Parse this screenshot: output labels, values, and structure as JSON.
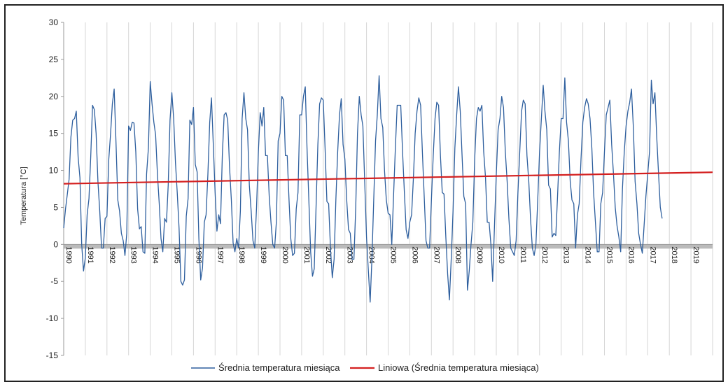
{
  "chart_data": {
    "type": "line",
    "ylabel": "Temperatura [°C]",
    "xlabel": "",
    "ylim": [
      -15,
      30
    ],
    "yticks": [
      30,
      25,
      20,
      15,
      10,
      5,
      0,
      -5,
      -10,
      -15
    ],
    "xticks": [
      "1990",
      "1991",
      "1992",
      "1993",
      "1994",
      "1995",
      "1996",
      "1997",
      "1998",
      "1999",
      "2000",
      "2001",
      "2002",
      "2003",
      "2004",
      "2005",
      "2006",
      "2007",
      "2008",
      "2009",
      "2010",
      "2011",
      "2012",
      "2013",
      "2014",
      "2015",
      "2016",
      "2017",
      "2018",
      "2019"
    ],
    "x_start": 1990,
    "x_end": 2020,
    "grid": "vertical",
    "legend_position": "bottom",
    "series": [
      {
        "name": "Średnia temperatura miesiąca",
        "color": "#2e5f9e",
        "values": [
          2.2,
          4.8,
          6.8,
          8.8,
          14.5,
          16.8,
          17.0,
          18.0,
          11.8,
          9.0,
          0.0,
          -3.6,
          -1.8,
          4.0,
          6.2,
          11.8,
          18.8,
          18.2,
          15.0,
          8.5,
          4.5,
          -0.5,
          -0.5,
          3.5,
          3.8,
          11.5,
          15.0,
          19.0,
          21.0,
          13.8,
          6.0,
          4.5,
          1.5,
          0.5,
          -1.5,
          1.5,
          16.0,
          15.4,
          16.5,
          16.4,
          12.5,
          4.8,
          2.1,
          2.4,
          -1.0,
          -1.2,
          9.5,
          13.0,
          22.0,
          19.0,
          16.5,
          14.8,
          9.5,
          5.5,
          0.8,
          -1.0,
          3.5,
          3.0,
          8.0,
          16.8,
          20.5,
          17.0,
          11.0,
          7.0,
          2.2,
          -5.0,
          -5.5,
          -4.8,
          3.8,
          6.2,
          16.8,
          16.2,
          18.5,
          10.8,
          9.8,
          0.8,
          -4.8,
          -3.2,
          3.0,
          4.0,
          9.5,
          16.5,
          19.8,
          13.5,
          7.0,
          1.8,
          4.0,
          2.8,
          12.0,
          17.5,
          17.8,
          16.8,
          10.5,
          6.0,
          0.2,
          -1.0,
          0.8,
          -0.5,
          4.5,
          17.0,
          20.5,
          17.0,
          15.5,
          8.0,
          4.5,
          0.5,
          -0.5,
          5.0,
          12.5,
          17.8,
          16.0,
          18.5,
          12.0,
          12.0,
          6.5,
          3.0,
          0.0,
          -0.5,
          3.0,
          14.0,
          15.0,
          20.0,
          19.5,
          12.0,
          12.0,
          6.0,
          0.8,
          -1.5,
          -1.2,
          4.8,
          7.0,
          17.5,
          17.5,
          20.0,
          21.3,
          13.0,
          6.0,
          -1.0,
          -4.3,
          -3.3,
          5.0,
          13.5,
          19.0,
          19.8,
          19.5,
          13.0,
          5.8,
          5.5,
          -0.5,
          -4.5,
          -2.0,
          6.0,
          12.5,
          17.5,
          19.7,
          13.5,
          11.5,
          6.0,
          2.0,
          1.5,
          -2.0,
          -2.0,
          5.0,
          15.0,
          20.0,
          17.5,
          16.0,
          8.5,
          1.0,
          -3.5,
          -7.8,
          -2.0,
          6.0,
          14.0,
          17.5,
          22.8,
          17.0,
          15.8,
          10.0,
          6.0,
          4.2,
          4.0,
          0.0,
          6.5,
          13.0,
          18.8,
          18.8,
          18.8,
          12.5,
          7.0,
          2.0,
          0.8,
          3.0,
          4.0,
          9.0,
          15.0,
          18.0,
          19.8,
          18.8,
          12.5,
          6.5,
          0.5,
          -0.5,
          -0.5,
          6.0,
          12.0,
          17.0,
          19.2,
          18.8,
          12.0,
          7.0,
          6.8,
          1.0,
          -4.0,
          -7.5,
          -2.0,
          4.5,
          13.0,
          17.5,
          21.3,
          18.0,
          12.0,
          6.5,
          5.5,
          -6.2,
          -3.5,
          0.0,
          3.0,
          11.5,
          17.0,
          18.5,
          18.0,
          18.8,
          12.5,
          9.0,
          3.0,
          3.0,
          0.0,
          -5.0,
          2.5,
          9.5,
          15.5,
          17.0,
          20.0,
          18.5,
          12.5,
          8.5,
          3.5,
          -0.5,
          -1.0,
          -1.5,
          0.5,
          7.0,
          12.5,
          18.0,
          19.5,
          19.0,
          12.0,
          8.5,
          3.5,
          -0.5,
          -1.5,
          0.0,
          6.0,
          12.5,
          17.0,
          21.5,
          18.0,
          15.5,
          8.0,
          7.5,
          1.0,
          1.5,
          1.2,
          6.5,
          12.5,
          17.0,
          17.0,
          22.5,
          16.5,
          14.0,
          8.5,
          6.0,
          5.5,
          -0.5,
          4.0,
          5.5,
          11.5,
          16.5,
          18.5,
          19.7,
          19.0,
          17.0,
          13.0,
          7.0,
          3.0,
          -1.0,
          -1.0,
          5.5,
          7.0,
          12.5,
          17.5,
          18.5,
          19.5,
          13.5,
          9.5,
          5.0,
          2.5,
          1.0,
          -1.0,
          7.5,
          12.5,
          16.0,
          18.0,
          19.2,
          21.0,
          16.0,
          8.5,
          5.5,
          1.5,
          0.0,
          -1.2,
          2.5,
          6.5,
          9.5,
          12.5,
          22.2,
          19.0,
          20.5,
          14.5,
          9.5,
          5.0,
          3.5
        ]
      },
      {
        "name": "Liniowa (Średnia temperatura miesiąca)",
        "color": "#d42020",
        "trend_start": 8.2,
        "trend_end": 9.75
      }
    ]
  }
}
